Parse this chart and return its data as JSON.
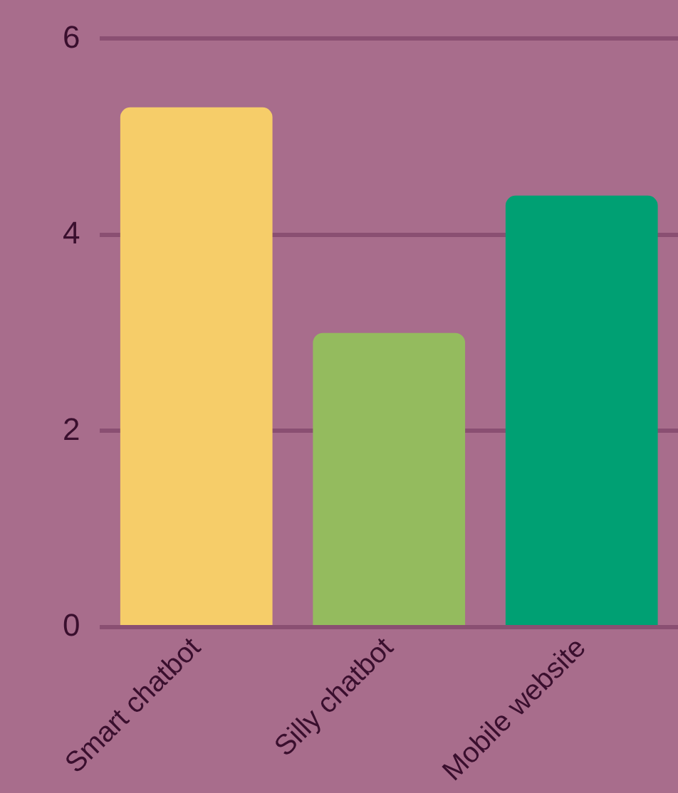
{
  "chart_data": {
    "type": "bar",
    "categories": [
      "Smart chatbot",
      "Silly chatbot",
      "Mobile website"
    ],
    "values": [
      5.3,
      3.0,
      4.4
    ],
    "colors": [
      "#f6cd69",
      "#94bb5e",
      "#00a073"
    ],
    "ylim": [
      0,
      6
    ],
    "yticks": [
      0,
      2,
      4,
      6
    ],
    "grid": "y",
    "legend": false
  }
}
